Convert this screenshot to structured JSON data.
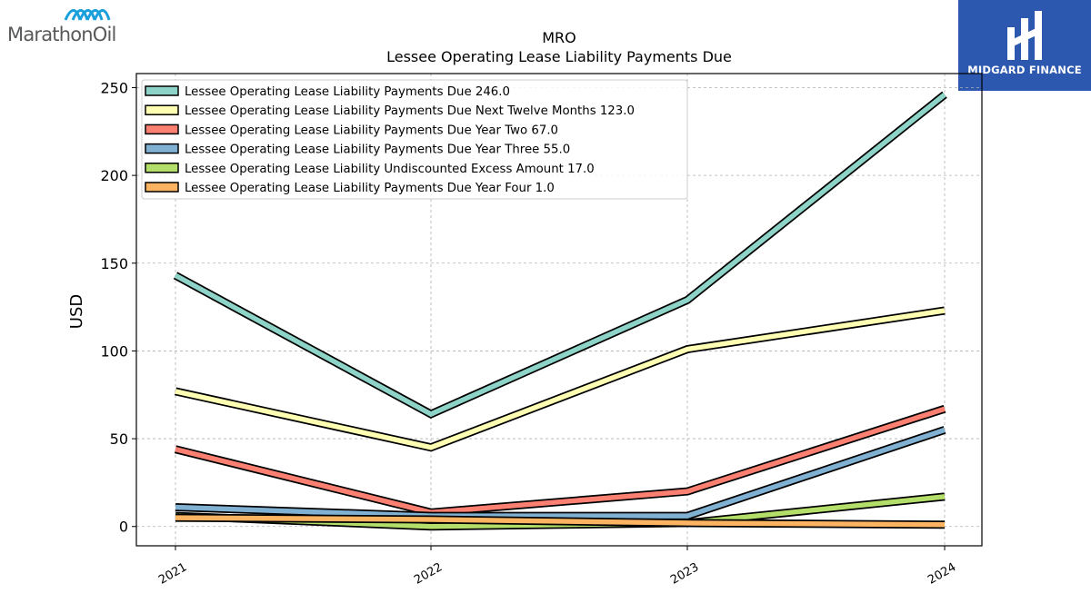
{
  "logos": {
    "left_text": "MarathonOil",
    "right_text": "MIDGARD FINANCE"
  },
  "chart_data": {
    "type": "line",
    "title": "MRO",
    "subtitle": "Lessee Operating Lease Liability Payments Due",
    "xlabel": "",
    "ylabel": "USD",
    "categories": [
      "2021",
      "2022",
      "2023",
      "2024"
    ],
    "ylim": [
      -11,
      258
    ],
    "yticks": [
      0,
      50,
      100,
      150,
      200,
      250
    ],
    "grid": true,
    "legend_position": "top-left",
    "series": [
      {
        "name": "Lessee Operating Lease Liability Payments Due",
        "legend_value": "246.0",
        "color": "#8dd3c7",
        "values": [
          143,
          64,
          129,
          246
        ]
      },
      {
        "name": "Lessee Operating Lease Liability Payments Due Next Twelve Months",
        "legend_value": "123.0",
        "color": "#ffffb3",
        "values": [
          77,
          45,
          101,
          123
        ]
      },
      {
        "name": "Lessee Operating Lease Liability Payments Due Year Two",
        "legend_value": "67.0",
        "color": "#fb8072",
        "values": [
          44,
          8,
          20,
          67
        ]
      },
      {
        "name": "Lessee Operating Lease Liability Payments Due Year Three",
        "legend_value": "55.0",
        "color": "#80b1d3",
        "values": [
          11,
          6,
          6,
          55
        ]
      },
      {
        "name": "Lessee Operating Lease Liability Undiscounted Excess Amount",
        "legend_value": "17.0",
        "color": "#b3de69",
        "values": [
          6,
          0,
          2,
          17
        ]
      },
      {
        "name": "Lessee Operating Lease Liability Payments Due Year Four",
        "legend_value": "1.0",
        "color": "#fdb462",
        "values": [
          5,
          4,
          2,
          1
        ]
      }
    ]
  }
}
